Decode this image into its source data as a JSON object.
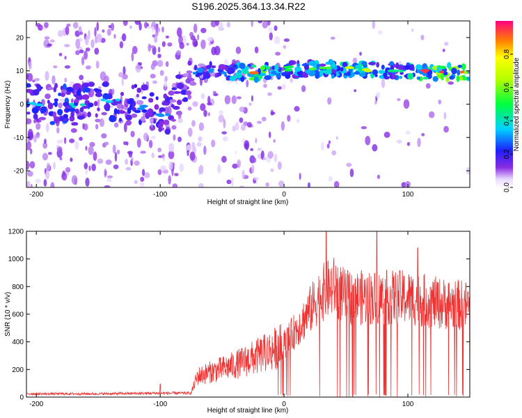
{
  "title": "S196.2025.364.13.34.R22",
  "chart_data": [
    {
      "type": "heatmap",
      "name": "spectrogram",
      "xlabel": "Height of straight line (km)",
      "ylabel": "Frequency (Hz)",
      "xlim": [
        -208,
        150
      ],
      "ylim": [
        -25,
        25
      ],
      "x_ticks": [
        -200,
        -100,
        0,
        100
      ],
      "x_tick_labels": [
        "-200",
        "-100",
        "0",
        "100"
      ],
      "y_ticks": [
        -20,
        -10,
        0,
        10,
        20
      ],
      "y_tick_labels": [
        "-20",
        "-10",
        "0",
        "10",
        "20"
      ],
      "colorbar": {
        "label": "Normalized spectral amplitude",
        "range": [
          0,
          1
        ],
        "ticks": [
          0.0,
          0.2,
          0.4,
          0.6,
          0.8
        ],
        "tick_labels": [
          "0.0",
          "0.2",
          "0.4",
          "0.6",
          "0.8"
        ]
      },
      "dominant_band": [
        {
          "x": -200,
          "freq": 0,
          "amp": 0.35
        },
        {
          "x": -170,
          "freq": 0,
          "amp": 0.4
        },
        {
          "x": -140,
          "freq": 1,
          "amp": 0.35
        },
        {
          "x": -110,
          "freq": -1,
          "amp": 0.3
        },
        {
          "x": -95,
          "freq": -3,
          "amp": 0.3
        },
        {
          "x": -70,
          "freq": 10,
          "amp": 0.3
        },
        {
          "x": -55,
          "freq": 10,
          "amp": 0.3
        },
        {
          "x": -20,
          "freq": 9.5,
          "amp": 0.9
        },
        {
          "x": 0,
          "freq": 10.5,
          "amp": 0.5
        },
        {
          "x": 30,
          "freq": 10.5,
          "amp": 0.55
        },
        {
          "x": 60,
          "freq": 10.5,
          "amp": 0.7
        },
        {
          "x": 90,
          "freq": 10,
          "amp": 0.45
        },
        {
          "x": 120,
          "freq": 9.5,
          "amp": 0.95
        },
        {
          "x": 145,
          "freq": 9.5,
          "amp": 0.9
        }
      ]
    },
    {
      "type": "line",
      "name": "snr",
      "xlabel": "Height of straight line (km)",
      "ylabel": "SNR (10 * v/v)",
      "xlim": [
        -208,
        150
      ],
      "ylim": [
        0,
        1200
      ],
      "x_ticks": [
        -200,
        -100,
        0,
        100
      ],
      "x_tick_labels": [
        "-200",
        "-100",
        "0",
        "100"
      ],
      "y_ticks": [
        0,
        200,
        400,
        600,
        800,
        1000,
        1200
      ],
      "y_tick_labels": [
        "0",
        "200",
        "400",
        "600",
        "800",
        "1000",
        "1200"
      ],
      "color": "#ee3333",
      "envelope": [
        {
          "x": -208,
          "y": 25
        },
        {
          "x": -150,
          "y": 25
        },
        {
          "x": -100,
          "y": 30
        },
        {
          "x": -75,
          "y": 30
        },
        {
          "x": -70,
          "y": 150
        },
        {
          "x": -60,
          "y": 180
        },
        {
          "x": -40,
          "y": 230
        },
        {
          "x": -20,
          "y": 300
        },
        {
          "x": 0,
          "y": 380
        },
        {
          "x": 15,
          "y": 550
        },
        {
          "x": 30,
          "y": 750
        },
        {
          "x": 40,
          "y": 800
        },
        {
          "x": 50,
          "y": 720
        },
        {
          "x": 75,
          "y": 720
        },
        {
          "x": 100,
          "y": 720
        },
        {
          "x": 125,
          "y": 680
        },
        {
          "x": 150,
          "y": 660
        }
      ],
      "notable_peaks": [
        {
          "x": -100,
          "y": 95
        },
        {
          "x": 34,
          "y": 1200
        },
        {
          "x": 75,
          "y": 1200
        },
        {
          "x": 108,
          "y": 1080
        }
      ]
    }
  ]
}
